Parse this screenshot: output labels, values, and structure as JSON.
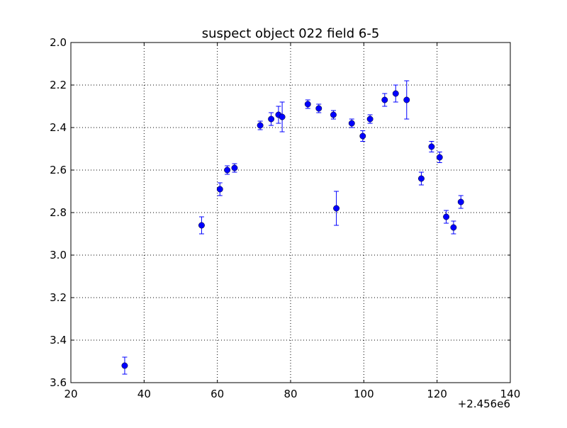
{
  "colors": {
    "background": "#ffffff",
    "marker": "#0000ff",
    "errorbar": "#0000ff",
    "axes": "#000000"
  },
  "chart_data": {
    "type": "scatter",
    "title": "suspect object 022 field 6-5",
    "xlabel": "",
    "ylabel": "",
    "x_offset_label": "+2.456e6",
    "xlim": [
      20,
      140
    ],
    "ylim": [
      2.0,
      3.6
    ],
    "y_inverted": true,
    "grid": true,
    "x_ticks": [
      20,
      40,
      60,
      80,
      100,
      120,
      140
    ],
    "x_tick_labels": [
      "20",
      "40",
      "60",
      "80",
      "100",
      "120",
      "140"
    ],
    "y_ticks": [
      2.0,
      2.2,
      2.4,
      2.6,
      2.8,
      3.0,
      3.2,
      3.4,
      3.6
    ],
    "y_tick_labels": [
      "2.0",
      "2.2",
      "2.4",
      "2.6",
      "2.8",
      "3.0",
      "3.2",
      "3.4",
      "3.6"
    ],
    "series": [
      {
        "marker": "circle",
        "errorbars": true,
        "points": [
          {
            "x": 34.7,
            "y": 3.52,
            "err": 0.04
          },
          {
            "x": 55.7,
            "y": 2.86,
            "err": 0.04
          },
          {
            "x": 60.7,
            "y": 2.69,
            "err": 0.03
          },
          {
            "x": 62.7,
            "y": 2.6,
            "err": 0.02
          },
          {
            "x": 64.7,
            "y": 2.59,
            "err": 0.02
          },
          {
            "x": 71.7,
            "y": 2.39,
            "err": 0.02
          },
          {
            "x": 74.7,
            "y": 2.36,
            "err": 0.03
          },
          {
            "x": 76.7,
            "y": 2.34,
            "err": 0.04
          },
          {
            "x": 77.7,
            "y": 2.35,
            "err": 0.07
          },
          {
            "x": 84.7,
            "y": 2.29,
            "err": 0.02
          },
          {
            "x": 87.7,
            "y": 2.31,
            "err": 0.02
          },
          {
            "x": 91.7,
            "y": 2.34,
            "err": 0.02
          },
          {
            "x": 92.5,
            "y": 2.78,
            "err": 0.08
          },
          {
            "x": 96.7,
            "y": 2.38,
            "err": 0.02
          },
          {
            "x": 99.7,
            "y": 2.44,
            "err": 0.025
          },
          {
            "x": 101.7,
            "y": 2.36,
            "err": 0.02
          },
          {
            "x": 105.7,
            "y": 2.27,
            "err": 0.03
          },
          {
            "x": 108.7,
            "y": 2.24,
            "err": 0.04
          },
          {
            "x": 111.7,
            "y": 2.27,
            "err": 0.09
          },
          {
            "x": 115.7,
            "y": 2.64,
            "err": 0.03
          },
          {
            "x": 118.5,
            "y": 2.49,
            "err": 0.025
          },
          {
            "x": 120.7,
            "y": 2.54,
            "err": 0.025
          },
          {
            "x": 122.5,
            "y": 2.82,
            "err": 0.03
          },
          {
            "x": 124.5,
            "y": 2.87,
            "err": 0.03
          },
          {
            "x": 126.5,
            "y": 2.75,
            "err": 0.03
          }
        ]
      }
    ]
  }
}
